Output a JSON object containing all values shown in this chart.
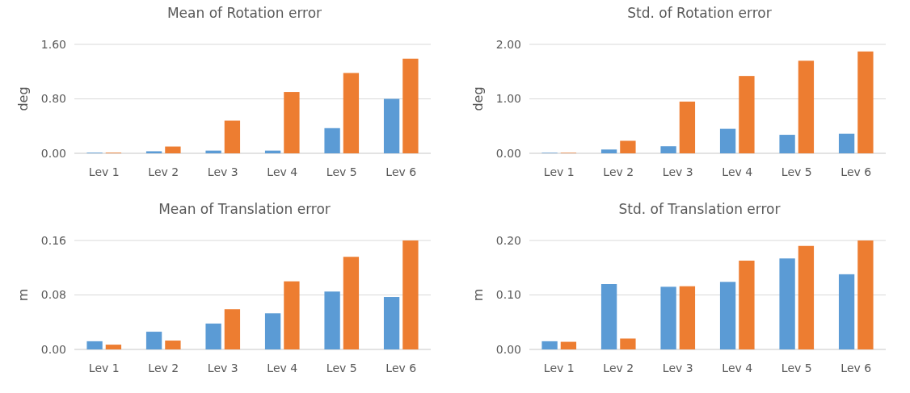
{
  "chart_data": [
    {
      "type": "bar",
      "title": "Mean of Rotation error",
      "ylabel": "deg",
      "categories": [
        "Lev 1",
        "Lev 2",
        "Lev 3",
        "Lev 4",
        "Lev 5",
        "Lev 6"
      ],
      "series": [
        {
          "color": "#5b9bd5",
          "values": [
            0.01,
            0.03,
            0.04,
            0.04,
            0.37,
            0.8
          ]
        },
        {
          "color": "#ed7d31",
          "values": [
            0.01,
            0.1,
            0.48,
            0.9,
            1.18,
            1.39
          ]
        }
      ],
      "ylim": [
        0,
        1.6
      ],
      "yticks": [
        {
          "value": 0,
          "label": "0.00"
        },
        {
          "value": 0.8,
          "label": "0.80"
        },
        {
          "value": 1.6,
          "label": "1.60"
        }
      ],
      "grid": "y"
    },
    {
      "type": "bar",
      "title": "Std. of Rotation error",
      "ylabel": "deg",
      "categories": [
        "Lev 1",
        "Lev 2",
        "Lev 3",
        "Lev 4",
        "Lev 5",
        "Lev 6"
      ],
      "series": [
        {
          "color": "#5b9bd5",
          "values": [
            0.01,
            0.07,
            0.13,
            0.45,
            0.34,
            0.36
          ]
        },
        {
          "color": "#ed7d31",
          "values": [
            0.01,
            0.23,
            0.95,
            1.42,
            1.7,
            1.87
          ]
        }
      ],
      "ylim": [
        0,
        2
      ],
      "yticks": [
        {
          "value": 0,
          "label": "0.00"
        },
        {
          "value": 1,
          "label": "1.00"
        },
        {
          "value": 2,
          "label": "2.00"
        }
      ],
      "grid": "y"
    },
    {
      "type": "bar",
      "title": "Mean of Translation error",
      "ylabel": "m",
      "categories": [
        "Lev 1",
        "Lev 2",
        "Lev 3",
        "Lev 4",
        "Lev 5",
        "Lev 6"
      ],
      "series": [
        {
          "color": "#5b9bd5",
          "values": [
            0.012,
            0.026,
            0.038,
            0.053,
            0.085,
            0.077
          ]
        },
        {
          "color": "#ed7d31",
          "values": [
            0.007,
            0.013,
            0.059,
            0.1,
            0.136,
            0.16
          ]
        }
      ],
      "ylim": [
        0,
        0.16
      ],
      "yticks": [
        {
          "value": 0,
          "label": "0.00"
        },
        0.08,
        0.16
      ],
      "grid": "y"
    },
    {
      "type": "bar",
      "title": "Std. of Translation error",
      "ylabel": "m",
      "categories": [
        "Lev 1",
        "Lev 2",
        "Lev 3",
        "Lev 4",
        "Lev 5",
        "Lev 6"
      ],
      "series": [
        {
          "color": "#5b9bd5",
          "values": [
            0.015,
            0.12,
            0.115,
            0.124,
            0.167,
            0.138
          ]
        },
        {
          "color": "#ed7d31",
          "values": [
            0.014,
            0.02,
            0.116,
            0.163,
            0.19,
            0.2
          ]
        }
      ],
      "ylim": [
        0,
        0.2
      ],
      "yticks": [
        {
          "value": 0,
          "label": "0.00"
        },
        {
          "value": 0.1,
          "label": "0.10"
        },
        {
          "value": 0.2,
          "label": "0.20"
        }
      ],
      "grid": "y"
    }
  ]
}
